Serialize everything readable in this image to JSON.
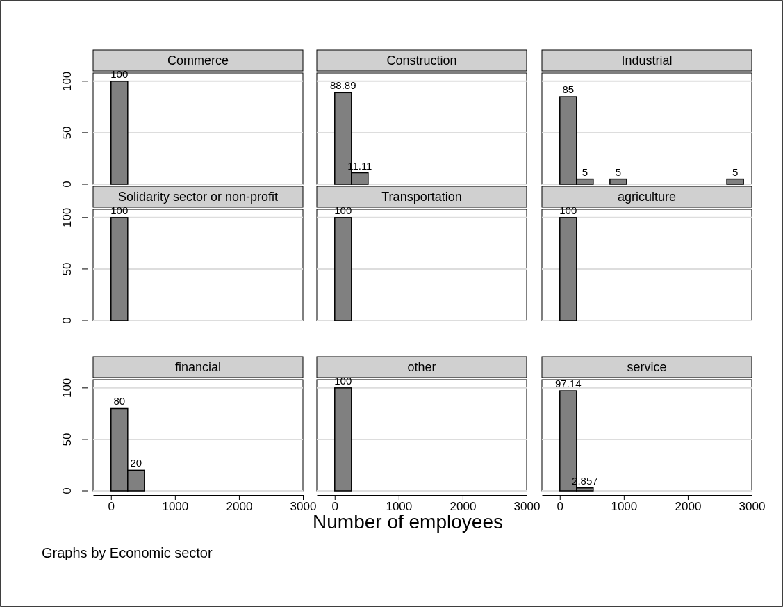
{
  "chart_data": [
    {
      "type": "histogram",
      "title": "Commerce",
      "bins": [
        0,
        261
      ],
      "values": [
        100
      ],
      "data_labels": true,
      "color": "#808080",
      "xlim": [
        -280,
        3000
      ],
      "ylim": [
        0,
        108
      ],
      "yticks": [
        0,
        50,
        100
      ],
      "grid": "y",
      "tick_labels": "y"
    },
    {
      "type": "histogram",
      "title": "Construction",
      "bins": [
        0,
        261,
        522
      ],
      "values": [
        88.89,
        11.11
      ],
      "data_labels": true,
      "color": "#808080",
      "xlim": [
        -280,
        3000
      ],
      "ylim": [
        0,
        108
      ],
      "yticks": [
        0,
        50,
        100
      ],
      "grid": "y",
      "tick_labels": false
    },
    {
      "type": "histogram",
      "title": "Industrial",
      "bins": [
        0,
        261,
        522,
        783,
        1044,
        1305,
        1566,
        1827,
        2088,
        2349,
        2610,
        2871
      ],
      "values": [
        85,
        5,
        0,
        5,
        0,
        0,
        0,
        0,
        0,
        0,
        5
      ],
      "value_labels": [
        "85",
        "5",
        null,
        "5",
        null,
        null,
        null,
        null,
        null,
        null,
        "5"
      ],
      "color": "#808080",
      "xlim": [
        -280,
        3000
      ],
      "ylim": [
        0,
        108
      ],
      "yticks": [
        0,
        50,
        100
      ],
      "grid": "y",
      "tick_labels": false
    },
    {
      "type": "histogram",
      "title": "Solidarity sector or non-profit",
      "bins": [
        0,
        261
      ],
      "values": [
        100
      ],
      "data_labels": true,
      "color": "#808080",
      "xlim": [
        -280,
        3000
      ],
      "ylim": [
        0,
        108
      ],
      "yticks": [
        0,
        50,
        100
      ],
      "grid": "y",
      "tick_labels": "y"
    },
    {
      "type": "histogram",
      "title": "Transportation",
      "bins": [
        0,
        261
      ],
      "values": [
        100
      ],
      "data_labels": true,
      "color": "#808080",
      "xlim": [
        -280,
        3000
      ],
      "ylim": [
        0,
        108
      ],
      "yticks": [
        0,
        50,
        100
      ],
      "grid": "y",
      "tick_labels": false
    },
    {
      "type": "histogram",
      "title": "agriculture",
      "bins": [
        0,
        261
      ],
      "values": [
        100
      ],
      "data_labels": true,
      "color": "#808080",
      "xlim": [
        -280,
        3000
      ],
      "ylim": [
        0,
        108
      ],
      "yticks": [
        0,
        50,
        100
      ],
      "grid": "y",
      "tick_labels": false
    },
    {
      "type": "histogram",
      "title": "financial",
      "bins": [
        0,
        261,
        522
      ],
      "values": [
        80,
        20
      ],
      "data_labels": true,
      "color": "#808080",
      "xlim": [
        -280,
        3000
      ],
      "xticks": [
        0,
        1000,
        2000,
        3000
      ],
      "ylim": [
        0,
        108
      ],
      "yticks": [
        0,
        50,
        100
      ],
      "grid": "y",
      "annotations": [
        "Graphs by Economic sector"
      ]
    },
    {
      "type": "histogram",
      "title": "other",
      "bins": [
        0,
        261
      ],
      "values": [
        100
      ],
      "data_labels": true,
      "color": "#808080",
      "xlim": [
        -280,
        3000
      ],
      "xticks": [
        0,
        1000,
        2000,
        3000
      ],
      "ylim": [
        0,
        108
      ],
      "yticks": [
        0,
        50,
        100
      ],
      "grid": "y",
      "tick_labels": "x",
      "xlabel": "Number of employees"
    },
    {
      "type": "histogram",
      "title": "service",
      "bins": [
        0,
        261,
        522
      ],
      "values": [
        97.14,
        2.857
      ],
      "data_labels": true,
      "color": "#808080",
      "xlim": [
        -280,
        3000
      ],
      "xticks": [
        0,
        1000,
        2000,
        3000
      ],
      "ylim": [
        0,
        108
      ],
      "yticks": [
        0,
        50,
        100
      ],
      "grid": "y",
      "tick_labels": "x"
    }
  ]
}
